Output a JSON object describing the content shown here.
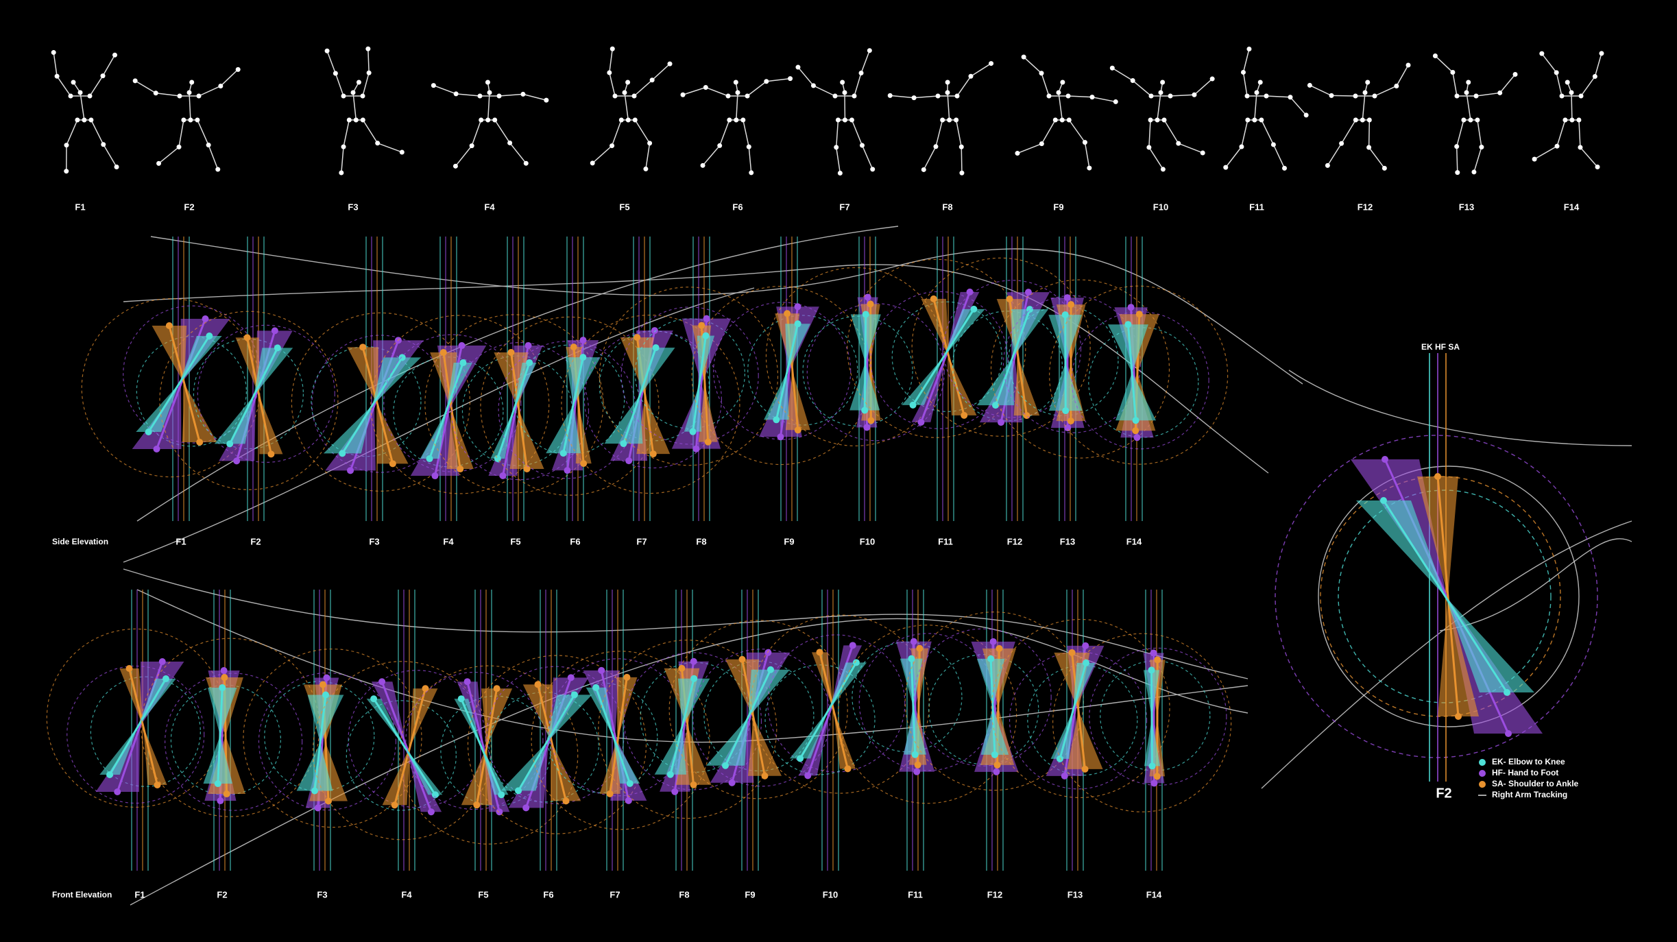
{
  "figures": {
    "labels": [
      "F1",
      "F2",
      "F3",
      "F4",
      "F5",
      "F6",
      "F7",
      "F8",
      "F9",
      "F10",
      "F11",
      "F12",
      "F13",
      "F14"
    ]
  },
  "side_elevation": {
    "title": "Side Elevation",
    "labels": [
      "F1",
      "F2",
      "F3",
      "F4",
      "F5",
      "F6",
      "F7",
      "F8",
      "F9",
      "F10",
      "F11",
      "F12",
      "F13",
      "F14"
    ]
  },
  "front_elevation": {
    "title": "Front Elevation",
    "labels": [
      "F1",
      "F2",
      "F3",
      "F4",
      "F5",
      "F6",
      "F7",
      "F8",
      "F9",
      "F10",
      "F11",
      "F12",
      "F13",
      "F14"
    ]
  },
  "detail": {
    "title": "EK HF SA",
    "frame": "F2",
    "legend": [
      "EK- Elbow to Knee",
      "HF- Hand to Foot",
      "SA- Shoulder to Ankle",
      "Right Arm Tracking"
    ]
  }
}
